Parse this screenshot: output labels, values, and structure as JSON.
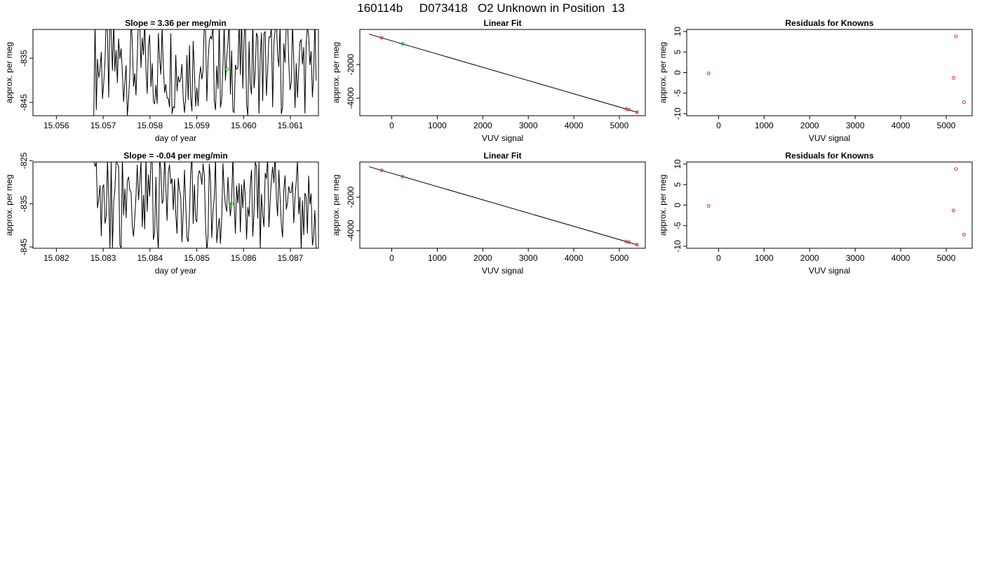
{
  "header": {
    "title": "160114b     D073418   O2 Unknown in Position  13"
  },
  "chart_data": [
    {
      "type": "line",
      "title": "Slope =  3.36  per meg/min",
      "xlabel": "day of year",
      "ylabel": "approx. per meg",
      "xlim": [
        15.0555,
        15.0616
      ],
      "ylim": [
        -848,
        -828.5
      ],
      "xticks": [
        {
          "value": 15.056,
          "label": "15.056"
        },
        {
          "value": 15.057,
          "label": "15.057"
        },
        {
          "value": 15.058,
          "label": "15.058"
        },
        {
          "value": 15.059,
          "label": "15.059"
        },
        {
          "value": 15.06,
          "label": "15.060"
        },
        {
          "value": 15.061,
          "label": "15.061"
        }
      ],
      "yticks": [
        {
          "value": -835,
          "label": "-835"
        },
        {
          "value": -845,
          "label": "-845"
        }
      ],
      "x_start": 15.0568,
      "x_end": 15.06155,
      "n_points": 180,
      "series_center": -836.5,
      "series_amplitude": 10,
      "series_color": "#000000",
      "marker": {
        "x": 15.05965,
        "y": -837.5,
        "color": "#22bb22"
      },
      "grid": false
    },
    {
      "type": "scatter",
      "title": "Linear Fit",
      "xlabel": "VUV signal",
      "ylabel": "approx. per meg",
      "xlim": [
        -700,
        5570
      ],
      "ylim": [
        -5050,
        100
      ],
      "xticks": [
        {
          "value": 0,
          "label": "0"
        },
        {
          "value": 1000,
          "label": "1000"
        },
        {
          "value": 2000,
          "label": "2000"
        },
        {
          "value": 3000,
          "label": "3000"
        },
        {
          "value": 4000,
          "label": "4000"
        },
        {
          "value": 5000,
          "label": "5000"
        }
      ],
      "yticks": [
        {
          "value": -2000,
          "label": "-2000"
        },
        {
          "value": -4000,
          "label": "-4000"
        }
      ],
      "fit_line": {
        "x": [
          -500,
          5400
        ],
        "y": [
          -180,
          -4850
        ],
        "color": "#000000"
      },
      "points": [
        {
          "x": -220,
          "y": -397,
          "color": "#cc3333"
        },
        {
          "x": 5150,
          "y": -4652,
          "color": "#cc3333"
        },
        {
          "x": 5210,
          "y": -4690,
          "color": "#cc3333"
        },
        {
          "x": 5390,
          "y": -4843,
          "color": "#cc3333"
        }
      ],
      "unknown_points": [
        {
          "x": 240,
          "y": -765,
          "color": "#22bb22"
        }
      ],
      "grid": false
    },
    {
      "type": "scatter",
      "title": "Residuals for Knowns",
      "xlabel": "VUV signal",
      "ylabel": "approx. per meg",
      "xlim": [
        -700,
        5570
      ],
      "ylim": [
        -10.5,
        10.5
      ],
      "xticks": [
        {
          "value": 0,
          "label": "0"
        },
        {
          "value": 1000,
          "label": "1000"
        },
        {
          "value": 2000,
          "label": "2000"
        },
        {
          "value": 3000,
          "label": "3000"
        },
        {
          "value": 4000,
          "label": "4000"
        },
        {
          "value": 5000,
          "label": "5000"
        }
      ],
      "yticks": [
        {
          "value": 10,
          "label": "10"
        },
        {
          "value": 5,
          "label": "5"
        },
        {
          "value": 0,
          "label": "0"
        },
        {
          "value": -5,
          "label": "-5"
        },
        {
          "value": -10,
          "label": "-10"
        }
      ],
      "points": [
        {
          "x": -220,
          "y": -0.2,
          "color": "#cc3333"
        },
        {
          "x": 5210,
          "y": 8.8,
          "color": "#cc3333"
        },
        {
          "x": 5160,
          "y": -1.3,
          "color": "#cc3333"
        },
        {
          "x": 5390,
          "y": -7.2,
          "color": "#cc3333"
        }
      ],
      "grid": false
    },
    {
      "type": "line",
      "title": "Slope =  -0.04  per meg/min",
      "xlabel": "day of year",
      "ylabel": "approx. per meg",
      "xlim": [
        15.0815,
        15.0876
      ],
      "ylim": [
        -845.3,
        -825.3
      ],
      "xticks": [
        {
          "value": 15.082,
          "label": "15.082"
        },
        {
          "value": 15.083,
          "label": "15.083"
        },
        {
          "value": 15.084,
          "label": "15.084"
        },
        {
          "value": 15.085,
          "label": "15.085"
        },
        {
          "value": 15.086,
          "label": "15.086"
        },
        {
          "value": 15.087,
          "label": "15.087"
        }
      ],
      "yticks": [
        {
          "value": -825,
          "label": "-825"
        },
        {
          "value": -835,
          "label": "-835"
        },
        {
          "value": -845,
          "label": "-845"
        }
      ],
      "x_start": 15.0828,
      "x_end": 15.08755,
      "n_points": 180,
      "series_center": -834.5,
      "series_amplitude": 10,
      "series_color": "#000000",
      "marker": {
        "x": 15.08575,
        "y": -835.0,
        "color": "#22bb22"
      },
      "grid": false
    },
    {
      "type": "scatter",
      "title": "Linear Fit",
      "xlabel": "VUV signal",
      "ylabel": "approx. per meg",
      "xlim": [
        -700,
        5570
      ],
      "ylim": [
        -5050,
        100
      ],
      "xticks": [
        {
          "value": 0,
          "label": "0"
        },
        {
          "value": 1000,
          "label": "1000"
        },
        {
          "value": 2000,
          "label": "2000"
        },
        {
          "value": 3000,
          "label": "3000"
        },
        {
          "value": 4000,
          "label": "4000"
        },
        {
          "value": 5000,
          "label": "5000"
        }
      ],
      "yticks": [
        {
          "value": -2000,
          "label": "-2000"
        },
        {
          "value": -4000,
          "label": "-4000"
        }
      ],
      "fit_line": {
        "x": [
          -500,
          5400
        ],
        "y": [
          -180,
          -4850
        ],
        "color": "#000000"
      },
      "points": [
        {
          "x": -220,
          "y": -397,
          "color": "#cc3333"
        },
        {
          "x": 5150,
          "y": -4652,
          "color": "#cc3333"
        },
        {
          "x": 5210,
          "y": -4690,
          "color": "#cc3333"
        },
        {
          "x": 5390,
          "y": -4843,
          "color": "#cc3333"
        }
      ],
      "unknown_points": [
        {
          "x": 240,
          "y": -765,
          "color": "#22bb22"
        }
      ],
      "grid": false
    },
    {
      "type": "scatter",
      "title": "Residuals for Knowns",
      "xlabel": "VUV signal",
      "ylabel": "approx. per meg",
      "xlim": [
        -700,
        5570
      ],
      "ylim": [
        -10.5,
        10.5
      ],
      "xticks": [
        {
          "value": 0,
          "label": "0"
        },
        {
          "value": 1000,
          "label": "1000"
        },
        {
          "value": 2000,
          "label": "2000"
        },
        {
          "value": 3000,
          "label": "3000"
        },
        {
          "value": 4000,
          "label": "4000"
        },
        {
          "value": 5000,
          "label": "5000"
        }
      ],
      "yticks": [
        {
          "value": 10,
          "label": "10"
        },
        {
          "value": 5,
          "label": "5"
        },
        {
          "value": 0,
          "label": "0"
        },
        {
          "value": -5,
          "label": "-5"
        },
        {
          "value": -10,
          "label": "-10"
        }
      ],
      "points": [
        {
          "x": -220,
          "y": -0.2,
          "color": "#cc3333"
        },
        {
          "x": 5210,
          "y": 8.8,
          "color": "#cc3333"
        },
        {
          "x": 5160,
          "y": -1.3,
          "color": "#cc3333"
        },
        {
          "x": 5390,
          "y": -7.2,
          "color": "#cc3333"
        }
      ],
      "grid": false
    }
  ]
}
